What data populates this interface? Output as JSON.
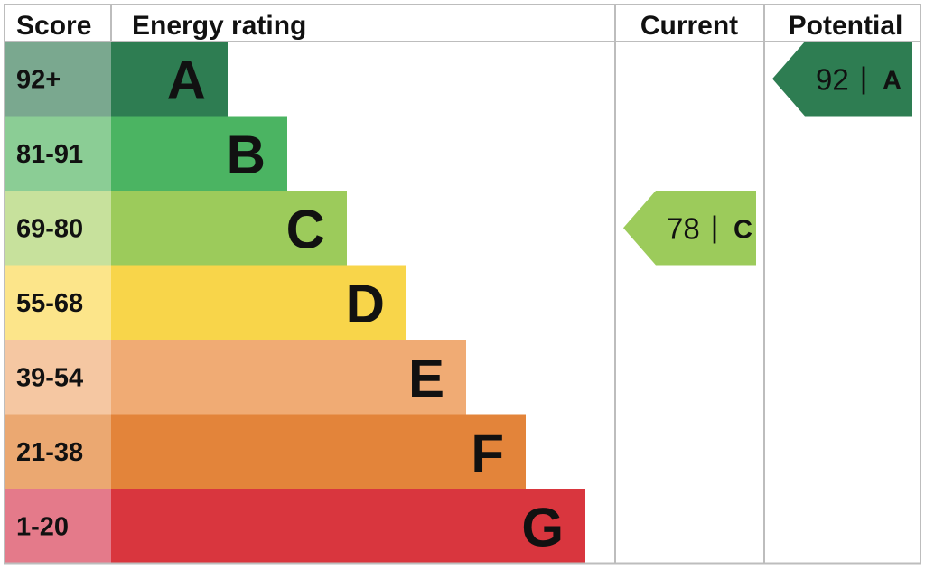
{
  "chart_data": {
    "type": "bar",
    "headers": {
      "score": "Score",
      "rating": "Energy rating",
      "current": "Current",
      "potential": "Potential"
    },
    "bands": [
      {
        "letter": "A",
        "score": "92+",
        "color": "#2e7d52",
        "tint": "#7aa88f"
      },
      {
        "letter": "B",
        "score": "81-91",
        "color": "#4bb462",
        "tint": "#8bcd95"
      },
      {
        "letter": "C",
        "score": "69-80",
        "color": "#9ccb5b",
        "tint": "#c7e19c"
      },
      {
        "letter": "D",
        "score": "55-68",
        "color": "#f8d54a",
        "tint": "#fce58a"
      },
      {
        "letter": "E",
        "score": "39-54",
        "color": "#f0ab74",
        "tint": "#f5c7a2"
      },
      {
        "letter": "F",
        "score": "21-38",
        "color": "#e3843a",
        "tint": "#eba871"
      },
      {
        "letter": "G",
        "score": "1-20",
        "color": "#d9363e",
        "tint": "#e47a8a"
      }
    ],
    "current": {
      "value": 78,
      "letter": "C",
      "separator": "|"
    },
    "potential": {
      "value": 92,
      "letter": "A",
      "separator": "|"
    }
  }
}
